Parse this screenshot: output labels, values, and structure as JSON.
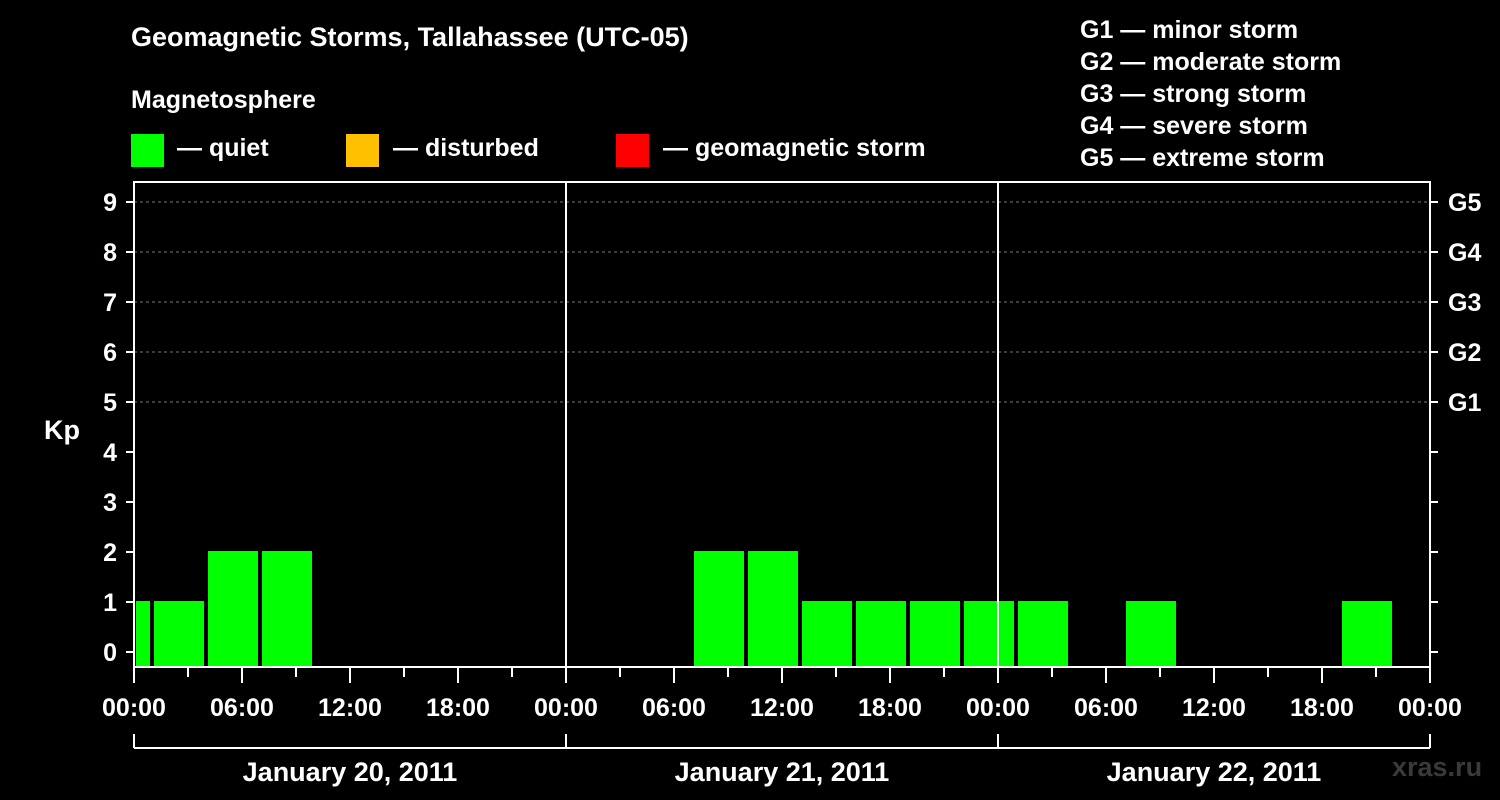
{
  "chart_data": {
    "type": "bar",
    "title": "Geomagnetic Storms, Tallahassee (UTC-05)",
    "ylabel": "Kp",
    "ylim": [
      0,
      9
    ],
    "y_ticks": [
      "0",
      "1",
      "2",
      "3",
      "4",
      "5",
      "6",
      "7",
      "8",
      "9"
    ],
    "right_ticks": [
      {
        "kp": 5,
        "label": "G1"
      },
      {
        "kp": 6,
        "label": "G2"
      },
      {
        "kp": 7,
        "label": "G3"
      },
      {
        "kp": 8,
        "label": "G4"
      },
      {
        "kp": 9,
        "label": "G5"
      }
    ],
    "x_tick_labels": [
      "00:00",
      "06:00",
      "12:00",
      "18:00",
      "00:00",
      "06:00",
      "12:00",
      "18:00",
      "00:00",
      "06:00",
      "12:00",
      "18:00",
      "00:00"
    ],
    "days": [
      "January 20, 2011",
      "January 21, 2011",
      "January 22, 2011"
    ],
    "bars": [
      {
        "start_hour": 0,
        "end_hour": 1,
        "kp": 1
      },
      {
        "start_hour": 1,
        "end_hour": 4,
        "kp": 1
      },
      {
        "start_hour": 4,
        "end_hour": 7,
        "kp": 2
      },
      {
        "start_hour": 7,
        "end_hour": 10,
        "kp": 2
      },
      {
        "start_hour": 31,
        "end_hour": 34,
        "kp": 2
      },
      {
        "start_hour": 34,
        "end_hour": 37,
        "kp": 2
      },
      {
        "start_hour": 37,
        "end_hour": 40,
        "kp": 1
      },
      {
        "start_hour": 40,
        "end_hour": 43,
        "kp": 1
      },
      {
        "start_hour": 43,
        "end_hour": 46,
        "kp": 1
      },
      {
        "start_hour": 46,
        "end_hour": 49,
        "kp": 1
      },
      {
        "start_hour": 49,
        "end_hour": 52,
        "kp": 1
      },
      {
        "start_hour": 55,
        "end_hour": 58,
        "kp": 1
      },
      {
        "start_hour": 67,
        "end_hour": 70,
        "kp": 1
      }
    ],
    "colors": {
      "quiet": "#00ff00",
      "disturbed": "#ffc000",
      "storm": "#ff0000"
    },
    "legend": {
      "heading": "Magnetosphere",
      "items": [
        {
          "label": "— quiet",
          "color": "#00ff00"
        },
        {
          "label": "— disturbed",
          "color": "#ffc000"
        },
        {
          "label": "— geomagnetic storm",
          "color": "#ff0000"
        }
      ]
    },
    "g_scale": [
      "G1 — minor storm",
      "G2 — moderate storm",
      "G3 — strong storm",
      "G4 — severe storm",
      "G5 — extreme storm"
    ]
  },
  "watermark": "xras.ru"
}
